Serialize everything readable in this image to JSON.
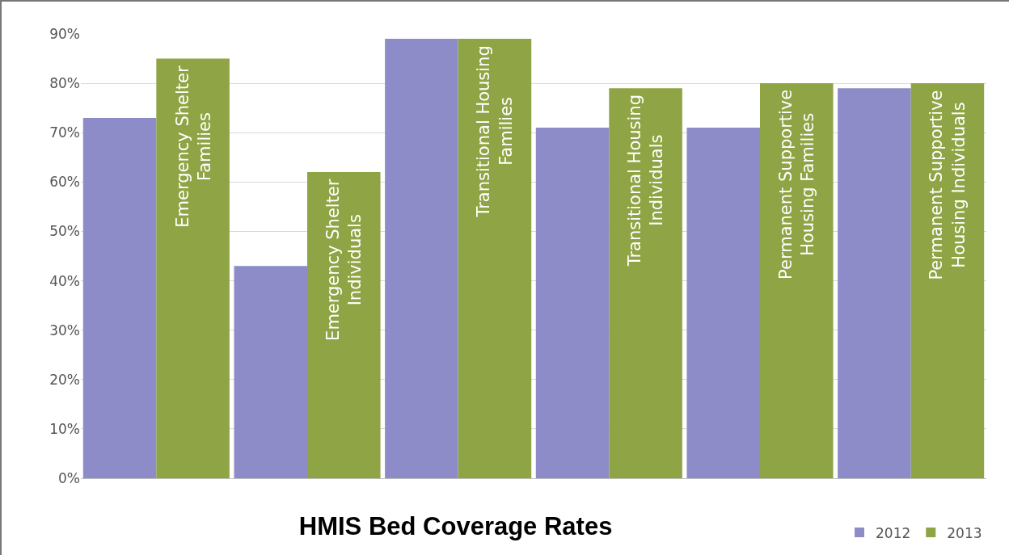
{
  "chart_data": {
    "type": "bar",
    "title": "HMIS Bed Coverage Rates",
    "categories": [
      "Emergency Shelter Families",
      "Emergency Shelter Individuals",
      "Transitional Housing Families",
      "Transitional Housing Individuals",
      "Permanent Supportive Housing Families",
      "Permanent Supportive Housing Individuals"
    ],
    "series": [
      {
        "name": "2012",
        "color": "#8e8cc8",
        "values": [
          73,
          43,
          89,
          71,
          71,
          79
        ]
      },
      {
        "name": "2013",
        "color": "#8fa444",
        "values": [
          85,
          62,
          89,
          79,
          80,
          80
        ]
      }
    ],
    "ylim": [
      0,
      90
    ],
    "yticks": [
      {
        "value": 0,
        "label": "0%"
      },
      {
        "value": 10,
        "label": "10%"
      },
      {
        "value": 20,
        "label": "20%"
      },
      {
        "value": 30,
        "label": "30%"
      },
      {
        "value": 40,
        "label": "40%"
      },
      {
        "value": 50,
        "label": "50%"
      },
      {
        "value": 60,
        "label": "60%"
      },
      {
        "value": 70,
        "label": "70%"
      },
      {
        "value": 80,
        "label": "80%"
      },
      {
        "value": 90,
        "label": "90%"
      }
    ],
    "grid": "y",
    "legend": "bottom right",
    "tick_labels": "y"
  }
}
